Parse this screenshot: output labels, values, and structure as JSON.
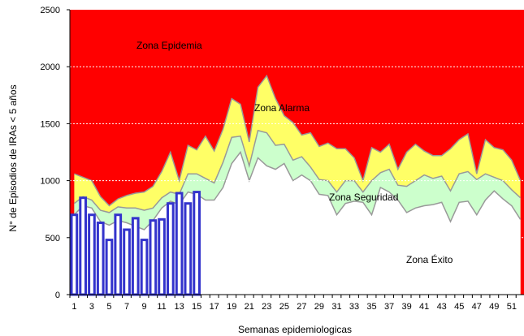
{
  "chart_data": {
    "type": "area",
    "xlabel": "Semanas  epidemiologicas",
    "ylabel": "N° de Episodios de IRAs < 5 años",
    "ylim": [
      0,
      2500
    ],
    "xlim": [
      0.5,
      52.5
    ],
    "y_ticks": [
      0,
      500,
      1000,
      1500,
      2000,
      2500
    ],
    "x_ticks": [
      1,
      3,
      5,
      7,
      9,
      11,
      13,
      15,
      17,
      19,
      21,
      23,
      25,
      27,
      29,
      31,
      33,
      35,
      37,
      39,
      41,
      43,
      45,
      47,
      49,
      51
    ],
    "grid": "horizontal",
    "colors": {
      "epidemia": "#ff0000",
      "alarma": "#ffff66",
      "seguridad": "#ccffcc",
      "exito": "#ffffff",
      "band_edge": "#999999",
      "bars": "#3333cc",
      "grid": "#ffffff"
    },
    "zone_labels": {
      "epidemia": "Zona Epidemia",
      "alarma": "Zona Alarma",
      "seguridad": "Zona Seguridad",
      "exito": "Zona Éxito"
    },
    "weeks": [
      1,
      2,
      3,
      4,
      5,
      6,
      7,
      8,
      9,
      10,
      11,
      12,
      13,
      14,
      15,
      16,
      17,
      18,
      19,
      20,
      21,
      22,
      23,
      24,
      25,
      26,
      27,
      28,
      29,
      30,
      31,
      32,
      33,
      34,
      35,
      36,
      37,
      38,
      39,
      40,
      41,
      42,
      43,
      44,
      45,
      46,
      47,
      48,
      49,
      50,
      51,
      52
    ],
    "alarma_upper": [
      1060,
      1030,
      1000,
      860,
      780,
      840,
      870,
      890,
      900,
      950,
      1080,
      1250,
      1000,
      1310,
      1270,
      1390,
      1260,
      1450,
      1720,
      1670,
      1340,
      1820,
      1920,
      1720,
      1570,
      1510,
      1400,
      1420,
      1300,
      1330,
      1280,
      1280,
      1200,
      1000,
      1290,
      1250,
      1320,
      1100,
      1250,
      1320,
      1260,
      1220,
      1220,
      1280,
      1360,
      1410,
      1060,
      1360,
      1290,
      1270,
      1180,
      1000
    ],
    "seguridad_upper": [
      800,
      860,
      830,
      740,
      720,
      770,
      760,
      760,
      740,
      760,
      850,
      900,
      880,
      1060,
      1060,
      1020,
      980,
      1160,
      1380,
      1390,
      1130,
      1440,
      1420,
      1310,
      1320,
      1180,
      1210,
      1120,
      1010,
      1000,
      900,
      1000,
      1000,
      900,
      1000,
      1070,
      1100,
      960,
      950,
      1000,
      1050,
      1020,
      1040,
      910,
      1060,
      1080,
      1010,
      1060,
      1030,
      1000,
      920,
      850
    ],
    "exito_upper": [
      700,
      780,
      760,
      640,
      610,
      650,
      630,
      600,
      570,
      650,
      760,
      820,
      790,
      900,
      880,
      830,
      830,
      940,
      1150,
      1250,
      1000,
      1200,
      1130,
      1100,
      1150,
      1000,
      1050,
      1000,
      880,
      870,
      700,
      800,
      820,
      810,
      700,
      940,
      900,
      830,
      720,
      760,
      780,
      790,
      810,
      640,
      810,
      820,
      700,
      830,
      910,
      840,
      780,
      660
    ],
    "bars": [
      {
        "week": 1,
        "value": 700
      },
      {
        "week": 2,
        "value": 850
      },
      {
        "week": 3,
        "value": 700
      },
      {
        "week": 4,
        "value": 630
      },
      {
        "week": 5,
        "value": 480
      },
      {
        "week": 6,
        "value": 700
      },
      {
        "week": 7,
        "value": 570
      },
      {
        "week": 8,
        "value": 670
      },
      {
        "week": 9,
        "value": 480
      },
      {
        "week": 10,
        "value": 650
      },
      {
        "week": 11,
        "value": 660
      },
      {
        "week": 12,
        "value": 800
      },
      {
        "week": 13,
        "value": 890
      },
      {
        "week": 14,
        "value": 800
      },
      {
        "week": 15,
        "value": 900
      }
    ]
  }
}
